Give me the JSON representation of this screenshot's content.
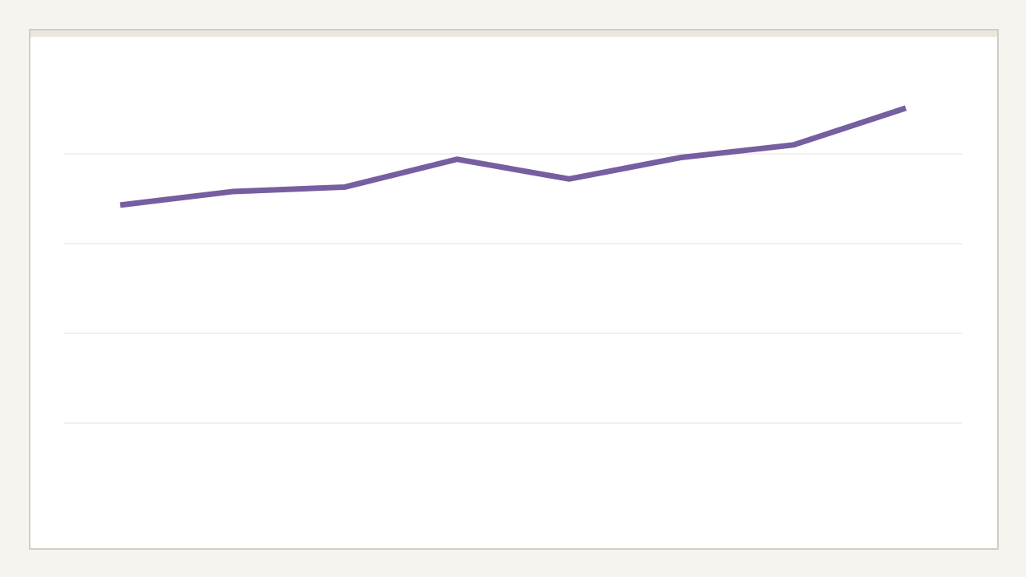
{
  "chart_data": {
    "type": "line",
    "categories": [
      null,
      null,
      null,
      null,
      null,
      null,
      null,
      null
    ],
    "series": [
      {
        "color": "#765fa0",
        "values": [
          3.43,
          3.58,
          3.63,
          3.94,
          3.72,
          3.96,
          4.1,
          4.51
        ]
      }
    ],
    "ylim": [
      0,
      5
    ],
    "yticks": [
      1,
      2,
      3,
      4
    ],
    "grid": true
  }
}
